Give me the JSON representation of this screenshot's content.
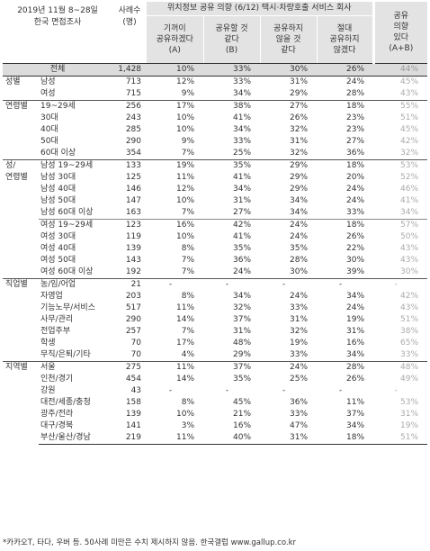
{
  "header": {
    "date_line1": "2019년 11월 8~28일",
    "date_line2": "한국 면접조사",
    "sample_label": "사례수\n(명)",
    "super_header": "위치정보 공유 의향 (6/12) 택시·차량호출 서비스 회사",
    "col_a": "기꺼이\n공유하겠다\n(A)",
    "col_b": "공유할 것\n같다\n(B)",
    "col_c": "공유하지\n않을 것\n같다",
    "col_d": "절대\n공유하지\n않겠다",
    "col_e": "공유\n의향\n있다\n(A+B)"
  },
  "total": {
    "label": "전체",
    "n": "1,428",
    "a": "10%",
    "b": "33%",
    "c": "30%",
    "d": "26%",
    "e": "44%"
  },
  "groups": [
    {
      "label": "성별",
      "rows": [
        {
          "label": "남성",
          "n": "713",
          "a": "12%",
          "b": "33%",
          "c": "31%",
          "d": "24%",
          "e": "45%"
        },
        {
          "label": "여성",
          "n": "715",
          "a": "9%",
          "b": "34%",
          "c": "29%",
          "d": "28%",
          "e": "43%"
        }
      ]
    },
    {
      "label": "연령별",
      "rows": [
        {
          "label": "19~29세",
          "n": "256",
          "a": "17%",
          "b": "38%",
          "c": "27%",
          "d": "18%",
          "e": "55%"
        },
        {
          "label": "30대",
          "n": "243",
          "a": "10%",
          "b": "41%",
          "c": "26%",
          "d": "23%",
          "e": "51%"
        },
        {
          "label": "40대",
          "n": "285",
          "a": "10%",
          "b": "34%",
          "c": "32%",
          "d": "23%",
          "e": "45%"
        },
        {
          "label": "50대",
          "n": "290",
          "a": "9%",
          "b": "33%",
          "c": "31%",
          "d": "27%",
          "e": "42%"
        },
        {
          "label": "60대 이상",
          "n": "354",
          "a": "7%",
          "b": "25%",
          "c": "32%",
          "d": "36%",
          "e": "32%"
        }
      ]
    },
    {
      "label": "성/\n연령별",
      "rows": [
        {
          "label": "남성 19~29세",
          "n": "133",
          "a": "19%",
          "b": "35%",
          "c": "29%",
          "d": "18%",
          "e": "53%"
        },
        {
          "label": "남성 30대",
          "n": "125",
          "a": "11%",
          "b": "41%",
          "c": "29%",
          "d": "20%",
          "e": "52%"
        },
        {
          "label": "남성 40대",
          "n": "146",
          "a": "12%",
          "b": "34%",
          "c": "29%",
          "d": "24%",
          "e": "46%"
        },
        {
          "label": "남성 50대",
          "n": "147",
          "a": "10%",
          "b": "31%",
          "c": "34%",
          "d": "24%",
          "e": "41%"
        },
        {
          "label": "남성 60대 이상",
          "n": "163",
          "a": "7%",
          "b": "27%",
          "c": "34%",
          "d": "33%",
          "e": "34%"
        },
        {
          "label": "여성 19~29세",
          "n": "123",
          "a": "16%",
          "b": "42%",
          "c": "24%",
          "d": "18%",
          "e": "57%",
          "sep": true
        },
        {
          "label": "여성 30대",
          "n": "119",
          "a": "10%",
          "b": "41%",
          "c": "24%",
          "d": "26%",
          "e": "50%"
        },
        {
          "label": "여성 40대",
          "n": "139",
          "a": "8%",
          "b": "35%",
          "c": "35%",
          "d": "22%",
          "e": "43%"
        },
        {
          "label": "여성 50대",
          "n": "143",
          "a": "7%",
          "b": "36%",
          "c": "28%",
          "d": "30%",
          "e": "43%"
        },
        {
          "label": "여성 60대 이상",
          "n": "192",
          "a": "7%",
          "b": "24%",
          "c": "30%",
          "d": "39%",
          "e": "30%"
        }
      ]
    },
    {
      "label": "직업별",
      "rows": [
        {
          "label": "농/임/어업",
          "n": "21",
          "a": "-",
          "b": "-",
          "c": "-",
          "d": "-",
          "e": "-"
        },
        {
          "label": "자영업",
          "n": "203",
          "a": "8%",
          "b": "34%",
          "c": "24%",
          "d": "34%",
          "e": "42%"
        },
        {
          "label": "기능노무/서비스",
          "n": "517",
          "a": "11%",
          "b": "32%",
          "c": "33%",
          "d": "24%",
          "e": "43%"
        },
        {
          "label": "사무/관리",
          "n": "290",
          "a": "14%",
          "b": "37%",
          "c": "31%",
          "d": "19%",
          "e": "51%"
        },
        {
          "label": "전업주부",
          "n": "257",
          "a": "7%",
          "b": "31%",
          "c": "32%",
          "d": "31%",
          "e": "38%"
        },
        {
          "label": "학생",
          "n": "70",
          "a": "17%",
          "b": "48%",
          "c": "19%",
          "d": "16%",
          "e": "65%"
        },
        {
          "label": "무직/은퇴/기타",
          "n": "70",
          "a": "4%",
          "b": "29%",
          "c": "33%",
          "d": "34%",
          "e": "33%"
        }
      ]
    },
    {
      "label": "지역별",
      "rows": [
        {
          "label": "서울",
          "n": "275",
          "a": "11%",
          "b": "37%",
          "c": "24%",
          "d": "28%",
          "e": "48%"
        },
        {
          "label": "인천/경기",
          "n": "454",
          "a": "14%",
          "b": "35%",
          "c": "25%",
          "d": "26%",
          "e": "49%"
        },
        {
          "label": "강원",
          "n": "43",
          "a": "-",
          "b": "-",
          "c": "-",
          "d": "-",
          "e": "-"
        },
        {
          "label": "대전/세종/충청",
          "n": "158",
          "a": "8%",
          "b": "45%",
          "c": "36%",
          "d": "11%",
          "e": "53%"
        },
        {
          "label": "광주/전라",
          "n": "139",
          "a": "10%",
          "b": "21%",
          "c": "33%",
          "d": "37%",
          "e": "31%"
        },
        {
          "label": "대구/경북",
          "n": "141",
          "a": "3%",
          "b": "16%",
          "c": "47%",
          "d": "34%",
          "e": "19%"
        },
        {
          "label": "부산/울산/경남",
          "n": "219",
          "a": "11%",
          "b": "40%",
          "c": "31%",
          "d": "18%",
          "e": "51%"
        }
      ]
    }
  ],
  "footer": "*카카오T, 타다, 우버 등. 50사례 미만은 수치 제시하지 않음. 한국갤럽 www.gallup.co.kr"
}
